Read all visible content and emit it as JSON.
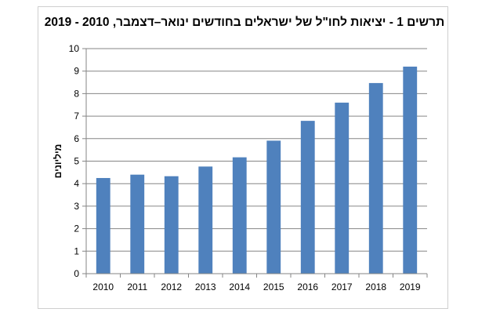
{
  "chart_data": {
    "type": "bar",
    "title": "תרשים 1 - יציאות לחו\"ל של ישראלים בחודשים ינואר–דצמבר, 2010 - 2019",
    "xlabel": "",
    "ylabel": "מיליונים",
    "categories": [
      "2010",
      "2011",
      "2012",
      "2013",
      "2014",
      "2015",
      "2016",
      "2017",
      "2018",
      "2019"
    ],
    "values": [
      4.25,
      4.4,
      4.33,
      4.76,
      5.17,
      5.91,
      6.79,
      7.6,
      8.47,
      9.2
    ],
    "ylim": [
      0,
      10
    ],
    "yticks": [
      0,
      1,
      2,
      3,
      4,
      5,
      6,
      7,
      8,
      9,
      10
    ],
    "grid": true,
    "bar_color": "#4f81bd",
    "grid_color": "#868686"
  }
}
